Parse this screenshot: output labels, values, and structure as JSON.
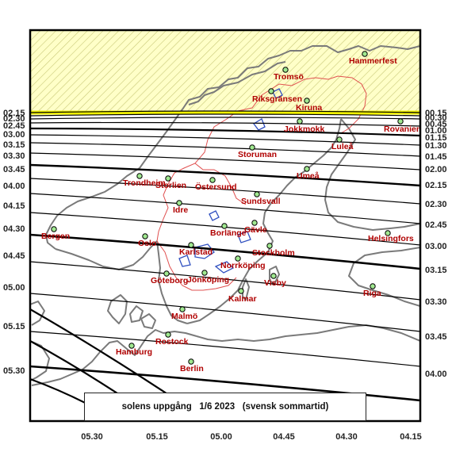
{
  "caption": "solens uppgång   1/6 2023   (svensk sommartid)",
  "colors": {
    "land_outline": "#7a7a7a",
    "sweden_border": "#e05050",
    "lakes": "#3050c0",
    "polar_day_fill": "#ffffc8",
    "polar_day_hatch": "#c8c878",
    "midnight_sun_line": "#f0f000",
    "city_marker": "#a0e890",
    "city_label": "#b00000",
    "contour": "#000000"
  },
  "left_labels": [
    "02.15",
    "02.30",
    "02.45",
    "03.00",
    "03.15",
    "03.30",
    "03.45",
    "04.00",
    "04.15",
    "04.30",
    "04.45",
    "05.00",
    "05.15",
    "05.30"
  ],
  "right_labels": [
    "00.15",
    "00.30",
    "00.45",
    "01.00",
    "01.15",
    "01.30",
    "01.45",
    "02.00",
    "02.15",
    "02.30",
    "02.45",
    "03.00",
    "03.15",
    "03.30",
    "03.45",
    "04.00"
  ],
  "bottom_labels": [
    "05.30",
    "05.15",
    "05.00",
    "04.45",
    "04.30",
    "04.15"
  ],
  "cities": [
    {
      "name": "Hammerfest"
    },
    {
      "name": "Tromsö"
    },
    {
      "name": "Riksgränsen"
    },
    {
      "name": "Kiruna"
    },
    {
      "name": "Jokkmokk"
    },
    {
      "name": "Rovaniemi"
    },
    {
      "name": "Luleå"
    },
    {
      "name": "Storuman"
    },
    {
      "name": "Umeå"
    },
    {
      "name": "Trondheim"
    },
    {
      "name": "Storlien"
    },
    {
      "name": "Östersund"
    },
    {
      "name": "Sundsvall"
    },
    {
      "name": "Idre"
    },
    {
      "name": "Bergen"
    },
    {
      "name": "Borlänge"
    },
    {
      "name": "Gävle"
    },
    {
      "name": "Helsingfors"
    },
    {
      "name": "Oslo"
    },
    {
      "name": "Karlstad"
    },
    {
      "name": "Stockholm"
    },
    {
      "name": "Norrköping"
    },
    {
      "name": "Göteborg"
    },
    {
      "name": "Jönköping"
    },
    {
      "name": "Visby"
    },
    {
      "name": "Kalmar"
    },
    {
      "name": "Riga"
    },
    {
      "name": "Malmö"
    },
    {
      "name": "Rostock"
    },
    {
      "name": "Hamburg"
    },
    {
      "name": "Berlin"
    }
  ]
}
